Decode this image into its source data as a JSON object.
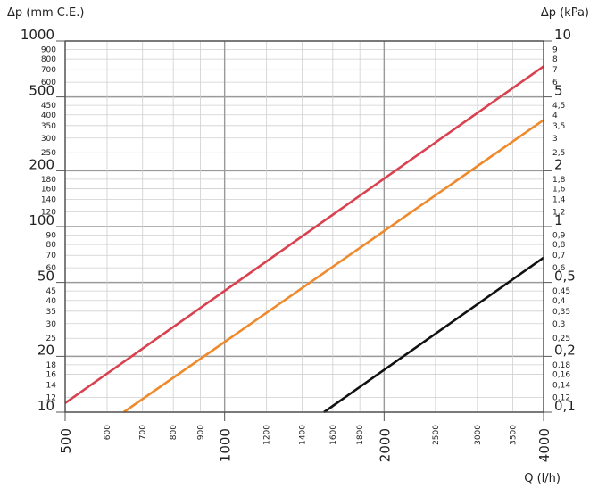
{
  "chart_data": {
    "type": "line",
    "left_axis_label": "Δp (mm C.E.)",
    "right_axis_label": "Δp (kPa)",
    "xlabel": "Q (l/h)",
    "xscale": "log",
    "yscale": "log",
    "xlim": [
      500,
      4000
    ],
    "ylim": [
      10,
      1000
    ],
    "grid": true,
    "x_ticks_major": [
      {
        "value": 500,
        "label": "500"
      },
      {
        "value": 1000,
        "label": "1000"
      },
      {
        "value": 2000,
        "label": "2000"
      },
      {
        "value": 4000,
        "label": "4000"
      }
    ],
    "x_ticks_minor": [
      {
        "value": 600,
        "label": "600"
      },
      {
        "value": 700,
        "label": "700"
      },
      {
        "value": 800,
        "label": "800"
      },
      {
        "value": 900,
        "label": "900"
      },
      {
        "value": 1200,
        "label": "1200"
      },
      {
        "value": 1400,
        "label": "1400"
      },
      {
        "value": 1600,
        "label": "1600"
      },
      {
        "value": 1800,
        "label": "1800"
      },
      {
        "value": 2500,
        "label": "2500"
      },
      {
        "value": 3000,
        "label": "3000"
      },
      {
        "value": 3500,
        "label": "3500"
      }
    ],
    "y_ticks": [
      {
        "value": 1000,
        "left": "1000",
        "right": "10",
        "major": true
      },
      {
        "value": 900,
        "left": "900",
        "right": "9",
        "major": false
      },
      {
        "value": 800,
        "left": "800",
        "right": "8",
        "major": false
      },
      {
        "value": 700,
        "left": "700",
        "right": "7",
        "major": false
      },
      {
        "value": 600,
        "left": "600",
        "right": "6",
        "major": false
      },
      {
        "value": 500,
        "left": "500",
        "right": "5",
        "major": true
      },
      {
        "value": 450,
        "left": "450",
        "right": "4,5",
        "major": false
      },
      {
        "value": 400,
        "left": "400",
        "right": "4",
        "major": false
      },
      {
        "value": 350,
        "left": "350",
        "right": "3,5",
        "major": false
      },
      {
        "value": 300,
        "left": "300",
        "right": "3",
        "major": false
      },
      {
        "value": 250,
        "left": "250",
        "right": "2,5",
        "major": false
      },
      {
        "value": 200,
        "left": "200",
        "right": "2",
        "major": true
      },
      {
        "value": 180,
        "left": "180",
        "right": "1,8",
        "major": false
      },
      {
        "value": 160,
        "left": "160",
        "right": "1,6",
        "major": false
      },
      {
        "value": 140,
        "left": "140",
        "right": "1,4",
        "major": false
      },
      {
        "value": 120,
        "left": "120",
        "right": "1,2",
        "major": false
      },
      {
        "value": 100,
        "left": "100",
        "right": "1",
        "major": true
      },
      {
        "value": 90,
        "left": "90",
        "right": "0,9",
        "major": false
      },
      {
        "value": 80,
        "left": "80",
        "right": "0,8",
        "major": false
      },
      {
        "value": 70,
        "left": "70",
        "right": "0,7",
        "major": false
      },
      {
        "value": 60,
        "left": "60",
        "right": "0,6",
        "major": false
      },
      {
        "value": 50,
        "left": "50",
        "right": "0,5",
        "major": true
      },
      {
        "value": 45,
        "left": "45",
        "right": "0,45",
        "major": false
      },
      {
        "value": 40,
        "left": "40",
        "right": "0,4",
        "major": false
      },
      {
        "value": 35,
        "left": "35",
        "right": "0,35",
        "major": false
      },
      {
        "value": 30,
        "left": "30",
        "right": "0,3",
        "major": false
      },
      {
        "value": 25,
        "left": "25",
        "right": "0,25",
        "major": false
      },
      {
        "value": 20,
        "left": "20",
        "right": "0,2",
        "major": true
      },
      {
        "value": 18,
        "left": "18",
        "right": "0,18",
        "major": false
      },
      {
        "value": 16,
        "left": "16",
        "right": "0,16",
        "major": false
      },
      {
        "value": 14,
        "left": "14",
        "right": "0,14",
        "major": false
      },
      {
        "value": 12,
        "left": "12",
        "right": "0,12",
        "major": false
      },
      {
        "value": 10,
        "left": "10",
        "right": "0,1",
        "major": true
      }
    ],
    "series": [
      {
        "color": "#d9414f",
        "points": [
          [
            500,
            11.2
          ],
          [
            4000,
            730
          ]
        ]
      },
      {
        "color": "#ef8a2c",
        "points": [
          [
            645,
            10
          ],
          [
            4000,
            375
          ]
        ]
      },
      {
        "color": "#111111",
        "points": [
          [
            1540,
            10
          ],
          [
            4000,
            68
          ]
        ]
      }
    ]
  }
}
